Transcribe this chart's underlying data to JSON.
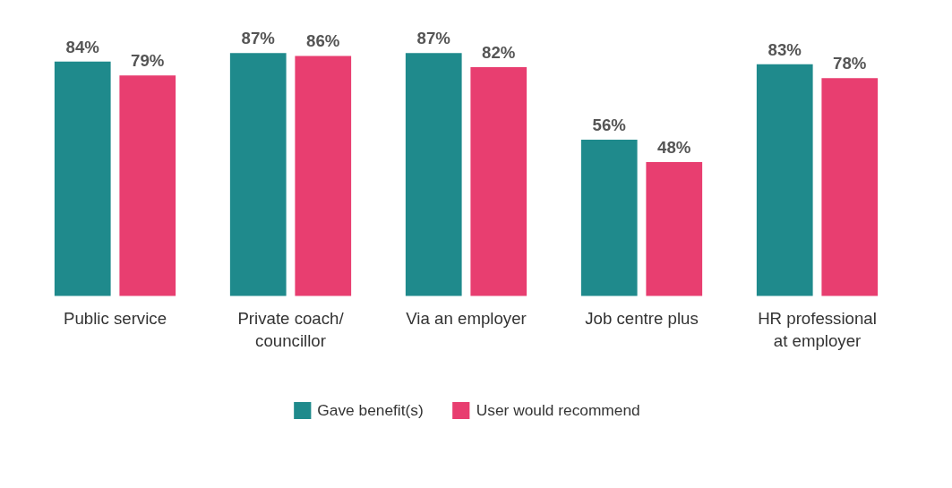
{
  "chart_data": {
    "type": "bar",
    "categories": [
      "Public service",
      "Private coach/ councillor",
      "Via an employer",
      "Job centre plus",
      "HR professional at employer"
    ],
    "series": [
      {
        "name": "Gave benefit(s)",
        "color": "#1f8a8c",
        "values": [
          84,
          87,
          87,
          56,
          83
        ],
        "value_labels": [
          "84%",
          "87%",
          "87%",
          "56%",
          "83%"
        ]
      },
      {
        "name": "User would recommend",
        "color": "#e83e70",
        "values": [
          79,
          86,
          82,
          48,
          78
        ],
        "value_labels": [
          "79%",
          "86%",
          "82%",
          "48%",
          "78%"
        ]
      }
    ],
    "legend": "bottom"
  }
}
